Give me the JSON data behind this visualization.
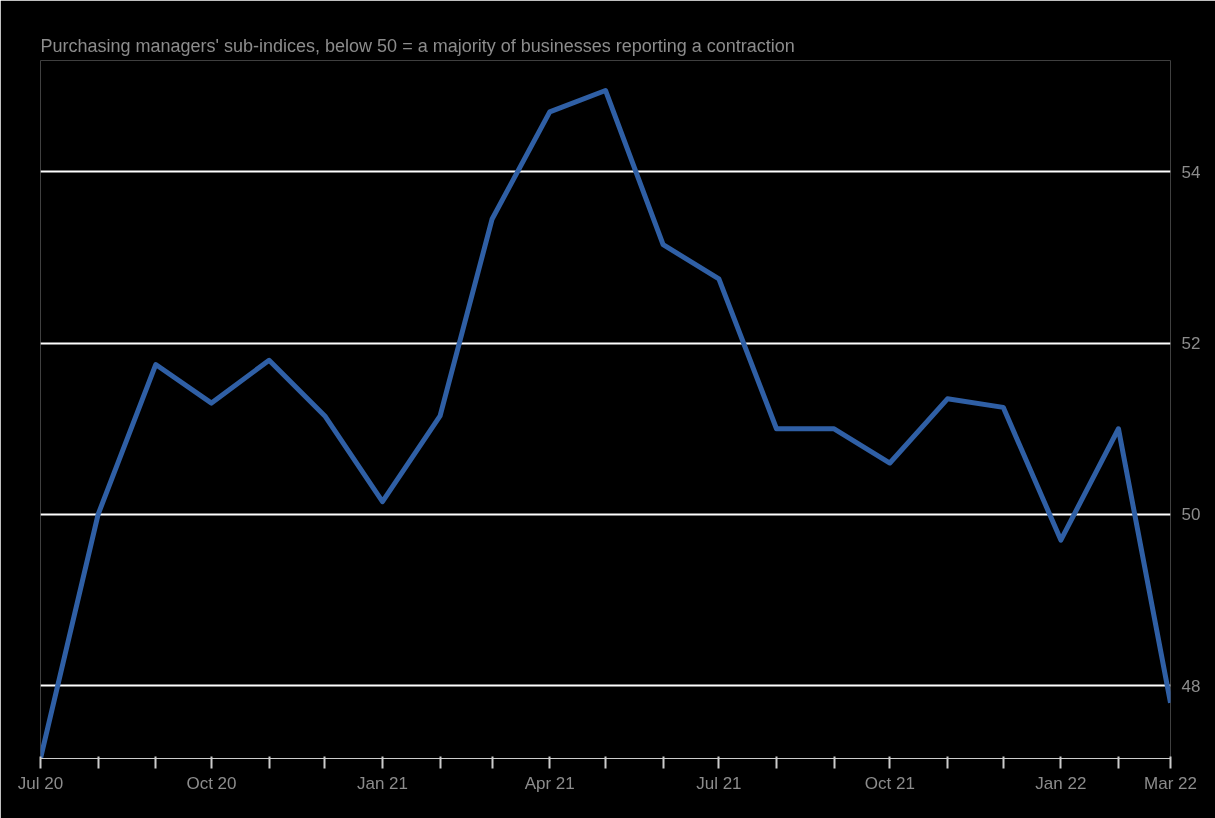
{
  "chart_data": {
    "type": "line",
    "subtitle": "Purchasing managers' sub-indices, below 50 = a majority of businesses reporting a contraction",
    "x": [
      "2020-07",
      "2020-08",
      "2020-09",
      "2020-10",
      "2020-11",
      "2020-12",
      "2021-01",
      "2021-02",
      "2021-03",
      "2021-04",
      "2021-05",
      "2021-06",
      "2021-07",
      "2021-08",
      "2021-09",
      "2021-10",
      "2021-11",
      "2021-12",
      "2022-01",
      "2022-02",
      "2022-03"
    ],
    "series": [
      {
        "color": "#2f5fa5",
        "values": [
          47.15,
          50.0,
          51.75,
          51.3,
          51.8,
          51.15,
          50.15,
          51.15,
          53.45,
          54.7,
          54.95,
          53.15,
          52.75,
          51.0,
          51.0,
          50.6,
          51.35,
          51.25,
          49.7,
          51.0,
          47.8
        ]
      }
    ],
    "xlim": [
      "2020-07",
      "2022-03"
    ],
    "xticks": [
      {
        "value": "2020-07",
        "label": "Jul 20"
      },
      {
        "value": "2020-08",
        "label": null
      },
      {
        "value": "2020-09",
        "label": null
      },
      {
        "value": "2020-10",
        "label": "Oct 20"
      },
      {
        "value": "2020-11",
        "label": null
      },
      {
        "value": "2020-12",
        "label": null
      },
      {
        "value": "2021-01",
        "label": "Jan 21"
      },
      {
        "value": "2021-02",
        "label": null
      },
      {
        "value": "2021-03",
        "label": null
      },
      {
        "value": "2021-04",
        "label": "Apr 21"
      },
      {
        "value": "2021-05",
        "label": null
      },
      {
        "value": "2021-06",
        "label": null
      },
      {
        "value": "2021-07",
        "label": "Jul 21"
      },
      {
        "value": "2021-08",
        "label": null
      },
      {
        "value": "2021-09",
        "label": null
      },
      {
        "value": "2021-10",
        "label": "Oct 21"
      },
      {
        "value": "2021-11",
        "label": null
      },
      {
        "value": "2021-12",
        "label": null
      },
      {
        "value": "2022-01",
        "label": "Jan 22"
      },
      {
        "value": "2022-02",
        "label": null
      },
      {
        "value": "2022-03",
        "label": "Mar 22"
      }
    ],
    "ylim": [
      47.15,
      55.3
    ],
    "yticks": [
      48,
      50,
      52,
      54
    ],
    "grid": "y",
    "marker": "none",
    "line_style": "solid"
  }
}
